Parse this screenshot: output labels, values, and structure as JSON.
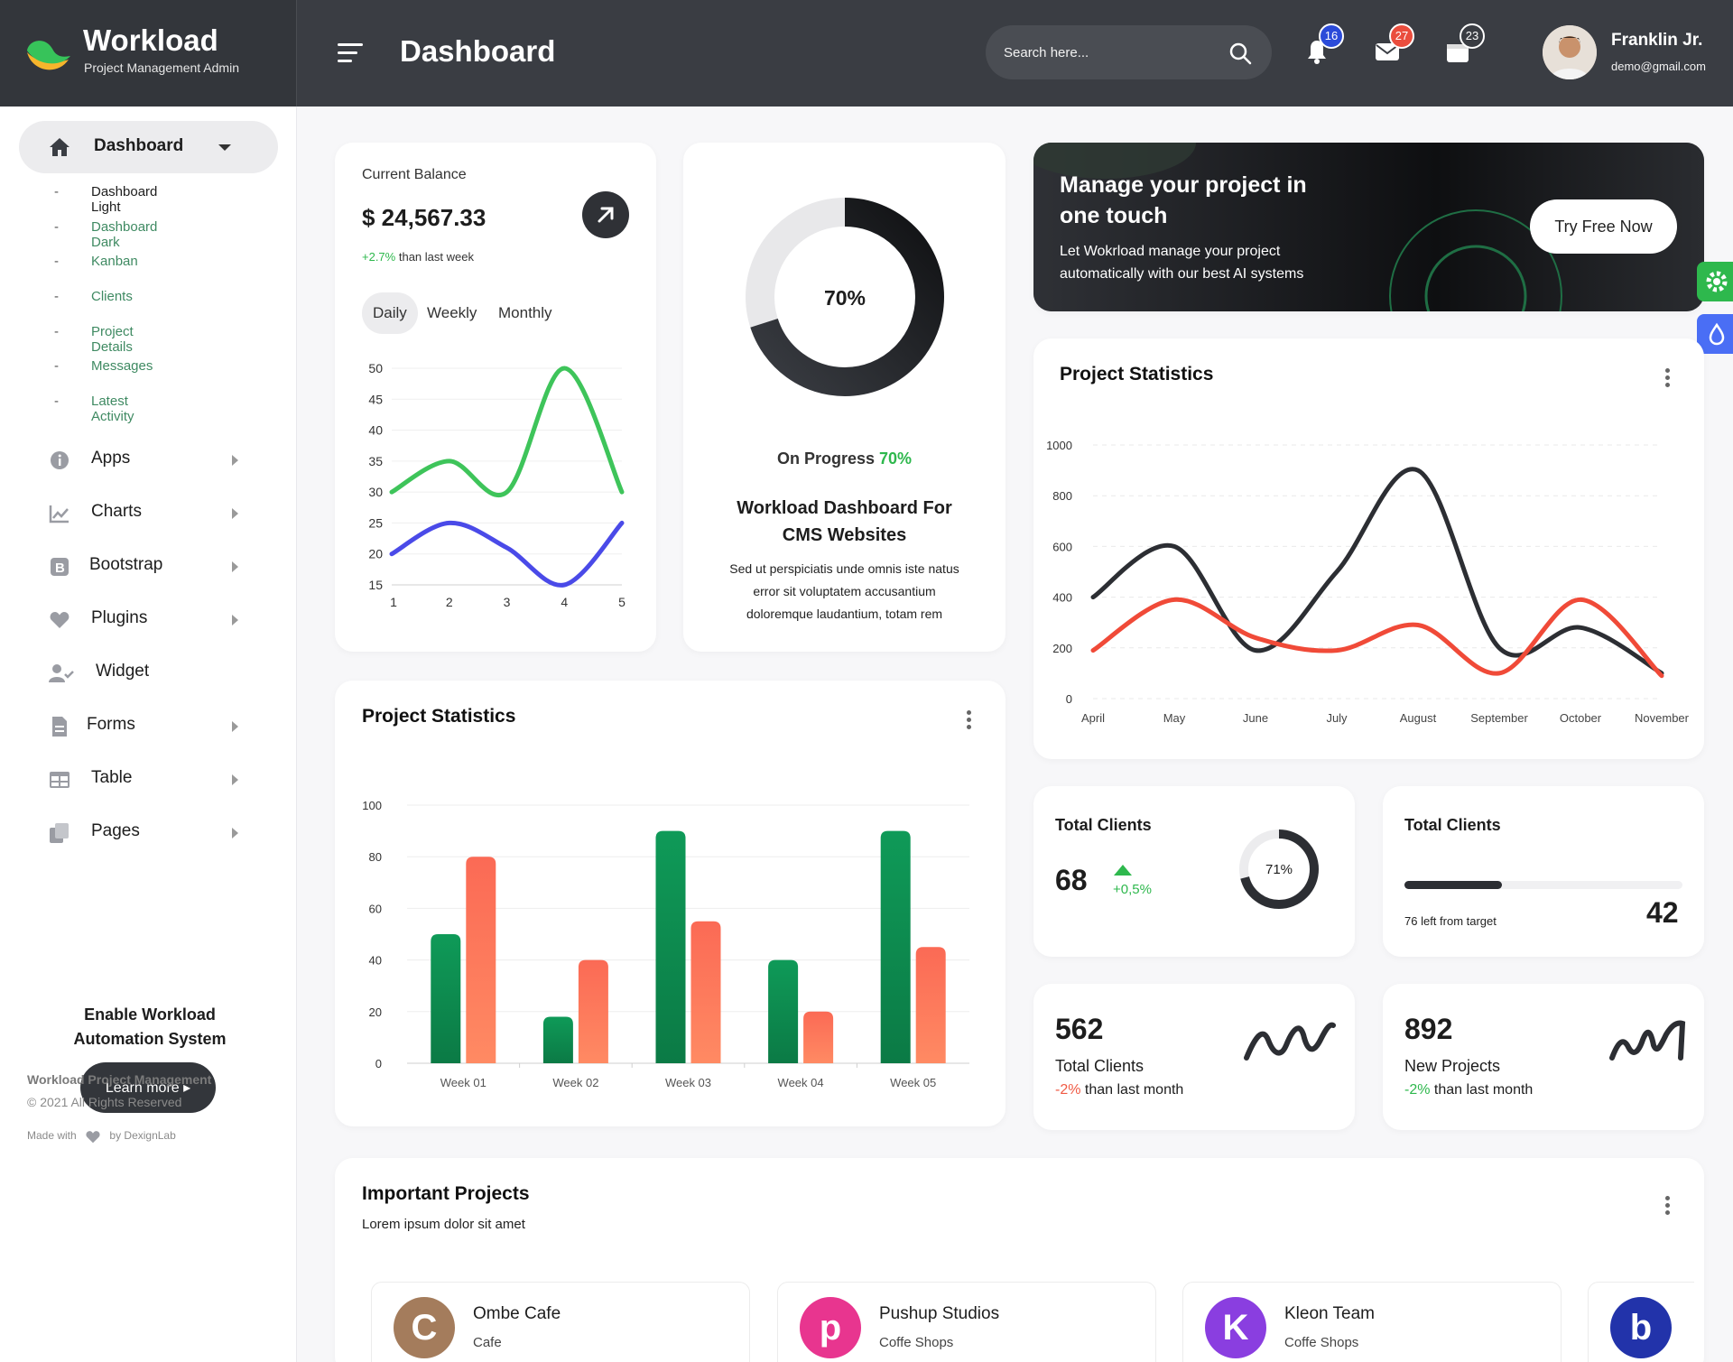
{
  "brand": {
    "title": "Workload",
    "subtitle": "Project Management Admin"
  },
  "header": {
    "title": "Dashboard",
    "search_placeholder": "Search here...",
    "notifications": "16",
    "messages": "27",
    "calendar": "23",
    "badge_colors": {
      "notifications": "#2b4bd9",
      "messages": "#ea4d3d",
      "calendar": "#3a3d43"
    }
  },
  "user": {
    "name": "Franklin Jr.",
    "email": "demo@gmail.com"
  },
  "sidebar": {
    "active": "Dashboard",
    "sub_items": [
      "Dashboard Light",
      "Dashboard Dark",
      "Kanban",
      "Clients",
      "Project Details",
      "Messages",
      "Latest Activity"
    ],
    "items": [
      {
        "label": "Apps",
        "icon": "info-icon"
      },
      {
        "label": "Charts",
        "icon": "chart-icon"
      },
      {
        "label": "Bootstrap",
        "icon": "bootstrap-icon"
      },
      {
        "label": "Plugins",
        "icon": "heart-icon"
      },
      {
        "label": "Widget",
        "icon": "user-check-icon"
      },
      {
        "label": "Forms",
        "icon": "file-icon"
      },
      {
        "label": "Table",
        "icon": "table-icon"
      },
      {
        "label": "Pages",
        "icon": "copy-icon"
      }
    ],
    "promo": {
      "title_line1": "Enable Workload",
      "title_line2": "Automation System",
      "button": "Learn more"
    },
    "footer": {
      "line1": "Workload Project Management",
      "line2": "© 2021 All Rights Reserved",
      "made_with": "Made with",
      "by": "by DexignLab"
    }
  },
  "balance": {
    "label": "Current Balance",
    "value": "$ 24,567.33",
    "change": "+2.7%",
    "change_text": "than last week",
    "tabs": [
      "Daily",
      "Weekly",
      "Monthly"
    ]
  },
  "progress": {
    "percent_label": "70%",
    "value": 0.7,
    "status_label": "On Progress",
    "status_value": "70%",
    "title_line1": "Workload Dashboard For",
    "title_line2": "CMS Websites",
    "desc_line1": "Sed ut perspiciatis unde omnis iste natus",
    "desc_line2": "error sit voluptatem accusantium",
    "desc_line3": "doloremque laudantium, totam rem"
  },
  "banner": {
    "title_line1": "Manage your project in",
    "title_line2": "one touch",
    "text_line1": "Let Wokrload manage your project",
    "text_line2": "automatically with our best AI systems",
    "button": "Try Free Now"
  },
  "project_stats_line": {
    "title": "Project Statistics"
  },
  "project_stats_bar": {
    "title": "Project Statistics"
  },
  "clients1": {
    "title": "Total Clients",
    "value": "68",
    "change": "+0,5%",
    "ring_label": "71%",
    "ring_value": 0.71
  },
  "clients2": {
    "title": "Total Clients",
    "left_text": "76 left from target",
    "value": "42",
    "progress": 0.35
  },
  "stat3": {
    "value": "562",
    "label": "Total Clients",
    "change": "-2%",
    "change_text": "than last month"
  },
  "stat4": {
    "value": "892",
    "label": "New Projects",
    "change": "-2%",
    "change_text": "than last month"
  },
  "important": {
    "title": "Important Projects",
    "subtitle": "Lorem ipsum dolor sit amet",
    "projects": [
      {
        "name": "Ombe Cafe",
        "category": "Cafe",
        "letter": "C",
        "color": "#a47c5c"
      },
      {
        "name": "Pushup Studios",
        "category": "Coffe Shops",
        "letter": "p",
        "color": "#e8358f"
      },
      {
        "name": "Kleon Team",
        "category": "Coffe Shops",
        "letter": "K",
        "color": "#8a3ee0"
      },
      {
        "name": "",
        "category": "",
        "letter": "b",
        "color": "#2233aa"
      }
    ]
  },
  "colors": {
    "accent": "#3f8a62",
    "green": "#2eb84d",
    "red": "#f05a44",
    "dark": "#2c2e33"
  },
  "chart_data": [
    {
      "type": "line",
      "x": [
        1,
        2,
        3,
        4,
        5
      ],
      "ylim": [
        15,
        50
      ],
      "yticks": [
        15,
        20,
        25,
        30,
        35,
        40,
        45,
        50
      ],
      "series": [
        {
          "values": [
            30,
            35,
            30,
            50,
            30
          ],
          "color": "#3ec45a"
        },
        {
          "values": [
            20,
            25,
            21,
            15,
            25
          ],
          "color": "#4a4ae8"
        }
      ]
    },
    {
      "type": "line",
      "categories": [
        "April",
        "May",
        "June",
        "July",
        "August",
        "September",
        "October",
        "November"
      ],
      "ylim": [
        0,
        1000
      ],
      "yticks": [
        0,
        200,
        400,
        600,
        800,
        1000
      ],
      "series": [
        {
          "values": [
            400,
            600,
            190,
            500,
            900,
            200,
            280,
            100
          ],
          "color": "#2c2e33"
        },
        {
          "values": [
            190,
            390,
            240,
            190,
            290,
            100,
            390,
            90
          ],
          "color": "#f04a38"
        }
      ]
    },
    {
      "type": "bar",
      "categories": [
        "Week 01",
        "Week 02",
        "Week 03",
        "Week 04",
        "Week 05"
      ],
      "ylim": [
        0,
        100
      ],
      "yticks": [
        0,
        20,
        40,
        60,
        80,
        100
      ],
      "series": [
        {
          "values": [
            50,
            18,
            90,
            40,
            90
          ],
          "color": "#0f9a58"
        },
        {
          "values": [
            80,
            40,
            55,
            20,
            45
          ],
          "color": "#fb6a55"
        }
      ]
    }
  ]
}
